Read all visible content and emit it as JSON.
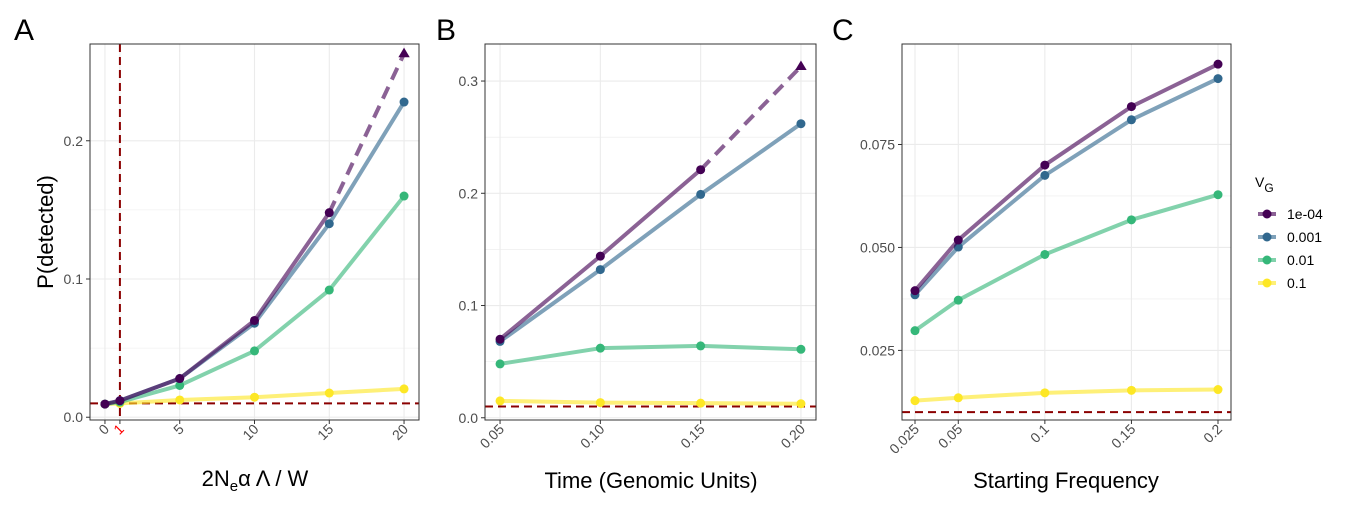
{
  "chart_data": [
    {
      "type": "line",
      "panel_label": "A",
      "xlabel": {
        "main": "2N",
        "sub": "e",
        "rest": "α Λ / W"
      },
      "ylabel": "P(detected)",
      "xlim": [
        -1,
        21
      ],
      "ylim": [
        -0.002,
        0.27
      ],
      "x_ticks": [
        {
          "value": 0,
          "label": "0",
          "color": "#4d4d4d"
        },
        {
          "value": 1,
          "label": "1",
          "color": "#ff0000"
        },
        {
          "value": 5,
          "label": "5",
          "color": "#4d4d4d"
        },
        {
          "value": 10,
          "label": "10",
          "color": "#4d4d4d"
        },
        {
          "value": 15,
          "label": "15",
          "color": "#4d4d4d"
        },
        {
          "value": 20,
          "label": "20",
          "color": "#4d4d4d"
        }
      ],
      "y_ticks": [
        {
          "value": 0.0,
          "label": "0.0"
        },
        {
          "value": 0.1,
          "label": "0.1"
        },
        {
          "value": 0.2,
          "label": "0.2"
        }
      ],
      "x_tick_rotation": -45,
      "hline": 0.01,
      "vline": 1,
      "x": [
        0,
        1,
        5,
        10,
        15,
        20
      ],
      "series": [
        {
          "name": "1e-04",
          "color": "#440154",
          "values": [
            0.0095,
            0.012,
            0.028,
            0.07,
            0.148,
            0.263
          ],
          "dashed_from": 4,
          "last_marker": "triangle"
        },
        {
          "name": "0.001",
          "color": "#31688e",
          "values": [
            0.0095,
            0.012,
            0.028,
            0.068,
            0.14,
            0.228
          ]
        },
        {
          "name": "0.01",
          "color": "#35b779",
          "values": [
            0.0095,
            0.011,
            0.023,
            0.048,
            0.092,
            0.16
          ]
        },
        {
          "name": "0.1",
          "color": "#fde725",
          "values": [
            0.0095,
            0.01,
            0.0125,
            0.0145,
            0.0175,
            0.0205
          ]
        }
      ],
      "grid": true
    },
    {
      "type": "line",
      "panel_label": "B",
      "xlabel": {
        "main": "Time (Genomic Units)",
        "sub": "",
        "rest": ""
      },
      "ylabel": "",
      "xlim": [
        0.0425,
        0.2075
      ],
      "ylim": [
        -0.002,
        0.333
      ],
      "x_ticks": [
        {
          "value": 0.05,
          "label": "0.05",
          "color": "#4d4d4d"
        },
        {
          "value": 0.1,
          "label": "0.10",
          "color": "#4d4d4d"
        },
        {
          "value": 0.15,
          "label": "0.15",
          "color": "#4d4d4d"
        },
        {
          "value": 0.2,
          "label": "0.20",
          "color": "#4d4d4d"
        }
      ],
      "y_ticks": [
        {
          "value": 0.0,
          "label": "0.0"
        },
        {
          "value": 0.1,
          "label": "0.1"
        },
        {
          "value": 0.2,
          "label": "0.2"
        },
        {
          "value": 0.3,
          "label": "0.3"
        }
      ],
      "x_tick_rotation": -45,
      "hline": 0.01,
      "x": [
        0.05,
        0.1,
        0.15,
        0.2
      ],
      "series": [
        {
          "name": "1e-04",
          "color": "#440154",
          "values": [
            0.07,
            0.144,
            0.221,
            0.313
          ],
          "dashed_from": 2,
          "last_marker": "triangle"
        },
        {
          "name": "0.001",
          "color": "#31688e",
          "values": [
            0.068,
            0.132,
            0.199,
            0.262
          ]
        },
        {
          "name": "0.01",
          "color": "#35b779",
          "values": [
            0.048,
            0.062,
            0.064,
            0.061
          ]
        },
        {
          "name": "0.1",
          "color": "#fde725",
          "values": [
            0.015,
            0.0135,
            0.013,
            0.0125
          ]
        }
      ],
      "grid": true
    },
    {
      "type": "line",
      "panel_label": "C",
      "xlabel": {
        "main": "Starting Frequency",
        "sub": "",
        "rest": ""
      },
      "ylabel": "",
      "xlim": [
        0.0175,
        0.2075
      ],
      "ylim": [
        0.0081,
        0.0994
      ],
      "x_ticks": [
        {
          "value": 0.025,
          "label": "0.025",
          "color": "#4d4d4d"
        },
        {
          "value": 0.05,
          "label": "0.05",
          "color": "#4d4d4d"
        },
        {
          "value": 0.1,
          "label": "0.1",
          "color": "#4d4d4d"
        },
        {
          "value": 0.15,
          "label": "0.15",
          "color": "#4d4d4d"
        },
        {
          "value": 0.2,
          "label": "0.2",
          "color": "#4d4d4d"
        }
      ],
      "y_ticks": [
        {
          "value": 0.025,
          "label": "0.025"
        },
        {
          "value": 0.05,
          "label": "0.050"
        },
        {
          "value": 0.075,
          "label": "0.075"
        }
      ],
      "x_tick_rotation": -45,
      "hline": 0.01,
      "x": [
        0.025,
        0.05,
        0.1,
        0.15,
        0.2
      ],
      "series": [
        {
          "name": "1e-04",
          "color": "#440154",
          "values": [
            0.0395,
            0.0518,
            0.07,
            0.0842,
            0.0945
          ]
        },
        {
          "name": "0.001",
          "color": "#31688e",
          "values": [
            0.0385,
            0.0501,
            0.0675,
            0.081,
            0.091
          ]
        },
        {
          "name": "0.01",
          "color": "#35b779",
          "values": [
            0.0298,
            0.0372,
            0.0483,
            0.0567,
            0.0628
          ]
        },
        {
          "name": "0.1",
          "color": "#fde725",
          "values": [
            0.0128,
            0.0135,
            0.0147,
            0.0153,
            0.0155
          ]
        }
      ],
      "grid": true
    }
  ],
  "legend": {
    "title_main": "V",
    "title_sub": "G",
    "placement": "right",
    "items": [
      {
        "label": "1e-04",
        "color": "#440154"
      },
      {
        "label": "0.001",
        "color": "#31688e"
      },
      {
        "label": "0.01",
        "color": "#35b779"
      },
      {
        "label": "0.1",
        "color": "#fde725"
      }
    ]
  },
  "colors": {
    "reference_line": "#8b0000",
    "grid": "#ebebeb",
    "panel_border": "#333333"
  }
}
